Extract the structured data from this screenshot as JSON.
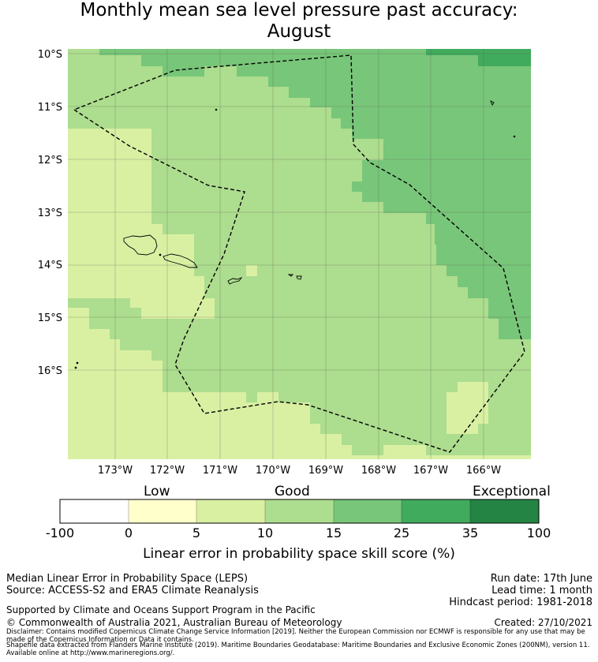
{
  "title_line1": "Monthly mean sea level pressure past accuracy:",
  "title_line2": "August",
  "map": {
    "lat_labels": [
      "10°S",
      "11°S",
      "12°S",
      "13°S",
      "14°S",
      "15°S",
      "16°S"
    ],
    "lon_labels": [
      "173°W",
      "172°W",
      "171°W",
      "170°W",
      "169°W",
      "168°W",
      "167°W",
      "166°W"
    ]
  },
  "colorbar": {
    "category_labels": [
      "Low",
      "Good",
      "Exceptional"
    ],
    "ticks": [
      "-100",
      "0",
      "5",
      "10",
      "15",
      "25",
      "35",
      "100"
    ],
    "colors": [
      "#ffffff",
      "#ffffcc",
      "#d9f0a3",
      "#addd8e",
      "#78c679",
      "#41ab5d",
      "#238443"
    ],
    "title": "Linear error in probability space skill score (%)"
  },
  "info": {
    "line1": "Median Linear Error in Probability Space (LEPS)",
    "line2": "Source: ACCESS-S2 and ERA5 Climate Reanalysis",
    "run_date": "Run date: 17th June",
    "lead_time": "Lead time: 1 month",
    "hindcast": "Hindcast period: 1981-2018",
    "support": "Supported by Climate and Oceans Support Program in the Pacific",
    "copyright": "© Commonwealth of Australia 2021, Australian Bureau of Meteorology",
    "created": "Created: 27/10/2021",
    "disclaimer": "Disclaimer: Contains modified Copernicus Climate Change Service Information [2019]. Neither the European Commission nor ECMWF is responsible for any use that may be made of the Copernicus Information or Data it contains.",
    "shapefile": "Shapefile data extracted from Flanders Marine Institute (2019). Maritime Boundaries Geodatabase: Maritime Boundaries and Exclusive Economic Zones (200NM), version 11. Available online at http://www.marineregions.org/."
  }
}
